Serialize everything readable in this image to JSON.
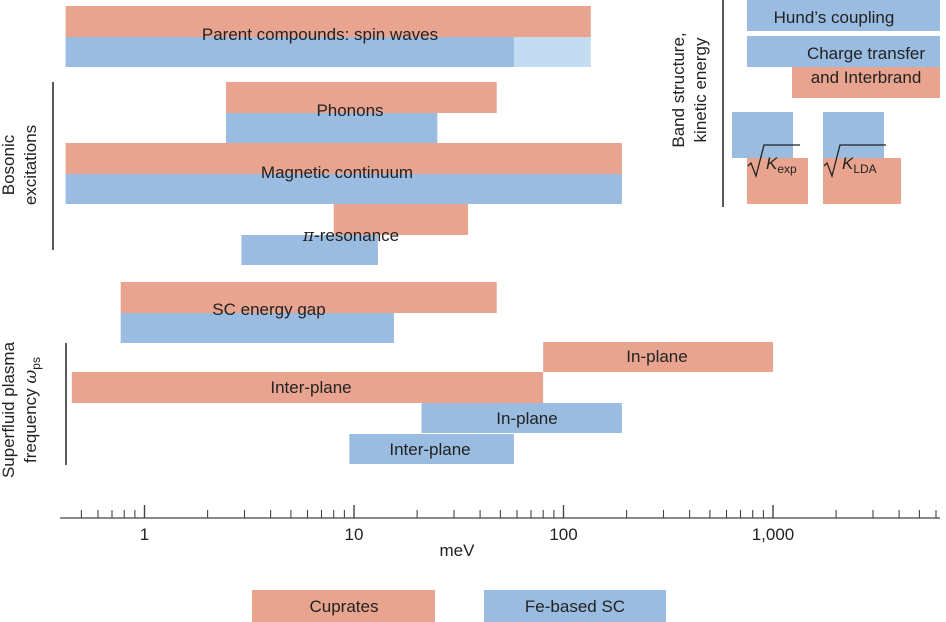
{
  "colors": {
    "cuprates": "#E8A48F",
    "fe": "#9ABCE0",
    "fe_light": "#C3DCF2",
    "axis": "#444444"
  },
  "chart_data": {
    "type": "range-bar",
    "xscale": "log",
    "xlim": [
      0.41,
      6500
    ],
    "xlabel": "meV",
    "x_ticks": [
      {
        "value": 1,
        "label": "1"
      },
      {
        "value": 10,
        "label": "10"
      },
      {
        "value": 100,
        "label": "100"
      },
      {
        "value": 1000,
        "label": "1,000"
      }
    ],
    "bars": [
      {
        "id": "spin-cuprates",
        "series": "cuprates",
        "x0": 0.42,
        "x1": 135
      },
      {
        "id": "spin-fe",
        "series": "fe",
        "x0": 0.42,
        "x1": 58
      },
      {
        "id": "spin-fe-ext",
        "series": "fe_light",
        "x0": 58,
        "x1": 135
      },
      {
        "id": "phonons-cuprates",
        "series": "cuprates",
        "x0": 2.45,
        "x1": 48
      },
      {
        "id": "phonons-fe",
        "series": "fe",
        "x0": 2.45,
        "x1": 25
      },
      {
        "id": "magcont-cuprates",
        "series": "cuprates",
        "x0": 0.42,
        "x1": 190
      },
      {
        "id": "magcont-fe",
        "series": "fe",
        "x0": 0.42,
        "x1": 190
      },
      {
        "id": "piresonance-cuprates",
        "series": "cuprates",
        "x0": 8,
        "x1": 35
      },
      {
        "id": "piresonance-fe",
        "series": "fe",
        "x0": 2.9,
        "x1": 13
      },
      {
        "id": "scgap-cuprates",
        "series": "cuprates",
        "x0": 0.77,
        "x1": 48
      },
      {
        "id": "scgap-fe",
        "series": "fe",
        "x0": 0.77,
        "x1": 15.5
      },
      {
        "id": "plasma-inplane-cuprates",
        "series": "cuprates",
        "x0": 80,
        "x1": 1000
      },
      {
        "id": "plasma-interplane-cuprates",
        "series": "cuprates",
        "x0": 0.45,
        "x1": 80
      },
      {
        "id": "plasma-inplane-fe",
        "series": "fe",
        "x0": 21,
        "x1": 190
      },
      {
        "id": "plasma-interplane-fe",
        "series": "fe",
        "x0": 9.5,
        "x1": 58
      }
    ],
    "bar_labels": {
      "spin": "Parent compounds: spin waves",
      "phonons": "Phonons",
      "magcont": "Magnetic continuum",
      "piresonance_sym": "π",
      "piresonance_text": "-resonance",
      "scgap": "SC energy gap",
      "plasma_inplane_cu": "In-plane",
      "plasma_interplane_cu": "Inter-plane",
      "plasma_inplane_fe": "In-plane",
      "plasma_interplane_fe": "Inter-plane"
    },
    "groups": {
      "bosonic_line1": "Bosonic",
      "bosonic_line2": "excitations",
      "plasma_line1": "Superfluid plasma",
      "plasma_line2": "frequency",
      "plasma_symbol": "ω",
      "plasma_sub": "ps",
      "band_line1": "Band structure,",
      "band_line2": "kinetic energy"
    },
    "band_panel": {
      "hunds": "Hund’s coupling",
      "charge_line1": "Charge transfer",
      "charge_line2": "and Interbrand",
      "kexp_sym": "K",
      "kexp_sub": "exp",
      "klda_sym": "K",
      "klda_sub": "LDA"
    },
    "legend": [
      {
        "key": "cuprates",
        "label": "Cuprates"
      },
      {
        "key": "fe",
        "label": "Fe-based SC"
      }
    ]
  }
}
